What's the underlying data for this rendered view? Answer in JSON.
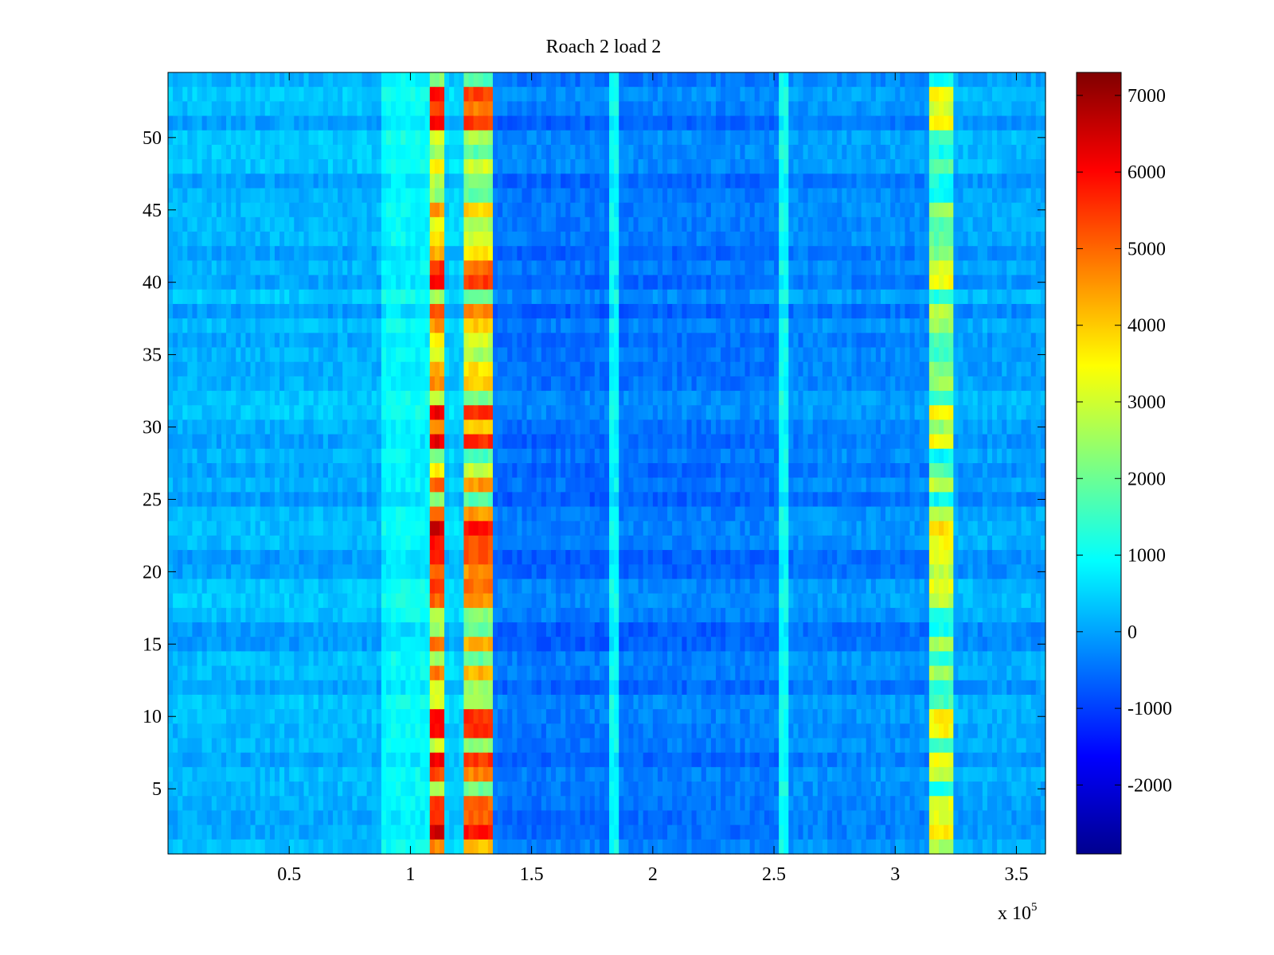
{
  "chart_data": {
    "type": "heatmap",
    "title": "Roach 2 load 2",
    "xlabel": "",
    "ylabel": "",
    "x_range": [
      0,
      362000
    ],
    "y_range": [
      0.5,
      54.5
    ],
    "x_ticks": [
      0.5,
      1,
      1.5,
      2,
      2.5,
      3,
      3.5
    ],
    "x_tick_labels": [
      "0.5",
      "1",
      "1.5",
      "2",
      "2.5",
      "3",
      "3.5"
    ],
    "x_exponent_label": "x 10",
    "x_exponent_power": "5",
    "y_ticks": [
      5,
      10,
      15,
      20,
      25,
      30,
      35,
      40,
      45,
      50
    ],
    "y_tick_labels": [
      "5",
      "10",
      "15",
      "20",
      "25",
      "30",
      "35",
      "40",
      "45",
      "50"
    ],
    "rows": 54,
    "colormap": "jet",
    "colorbar": {
      "range": [
        -2900,
        7300
      ],
      "ticks": [
        7000,
        6000,
        5000,
        4000,
        3000,
        2000,
        1000,
        0,
        -1000,
        -2000
      ],
      "tick_labels": [
        "7000",
        "6000",
        "5000",
        "4000",
        "3000",
        "2000",
        "1000",
        "0",
        "-1000",
        "-2000"
      ]
    },
    "features": [
      {
        "x_from": 0,
        "x_to": 88000,
        "level": 150
      },
      {
        "x_from": 88000,
        "x_to": 109000,
        "level": 850
      },
      {
        "x_from": 109000,
        "x_to": 115000,
        "level": 3900
      },
      {
        "x_from": 115000,
        "x_to": 123000,
        "level": 400
      },
      {
        "x_from": 123000,
        "x_to": 135000,
        "level": 3300
      },
      {
        "x_from": 135000,
        "x_to": 183000,
        "level": -500
      },
      {
        "x_from": 183000,
        "x_to": 186000,
        "level": 900
      },
      {
        "x_from": 186000,
        "x_to": 253000,
        "level": -450
      },
      {
        "x_from": 253000,
        "x_to": 256000,
        "level": 1000
      },
      {
        "x_from": 256000,
        "x_to": 314000,
        "level": -250
      },
      {
        "x_from": 314000,
        "x_to": 325000,
        "level": 2300
      },
      {
        "x_from": 325000,
        "x_to": 362000,
        "level": 0
      }
    ]
  }
}
